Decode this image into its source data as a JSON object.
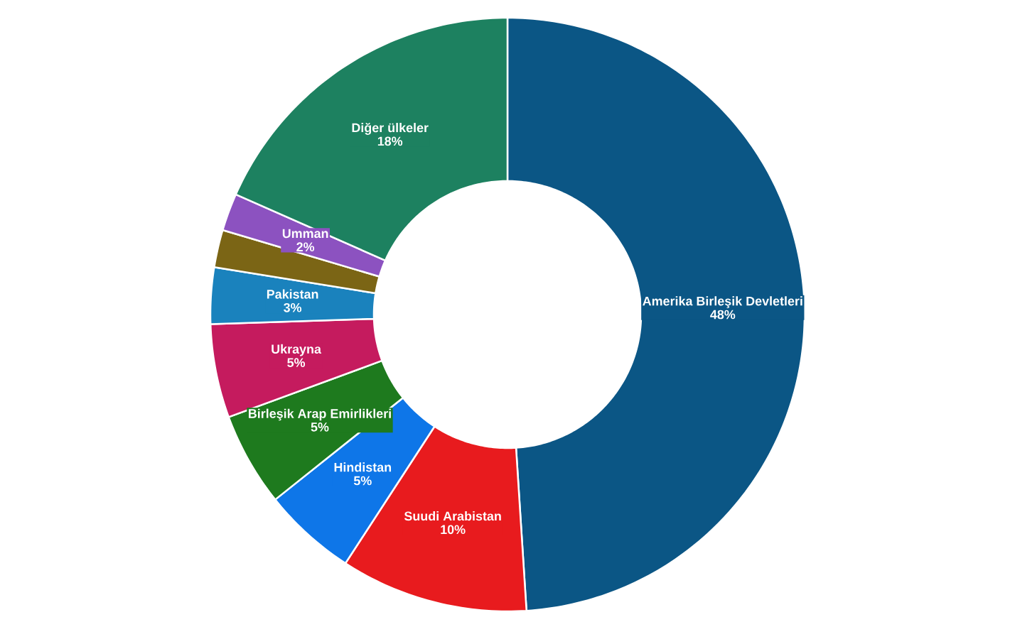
{
  "chart_data": {
    "type": "donut",
    "categories": [
      "Amerika Birleşik Devletleri",
      "Suudi Arabistan",
      "Hindistan",
      "Birleşik Arap Emirlikleri",
      "Ukrayna",
      "Pakistan",
      null,
      "Umman",
      "Diğer ülkeler"
    ],
    "values": [
      48,
      10,
      5,
      5,
      5,
      3,
      2,
      2,
      18
    ],
    "value_labels": [
      "48%",
      "10%",
      "5%",
      "5%",
      "5%",
      "3%",
      null,
      "2%",
      "18%"
    ],
    "colors": [
      "#0b5685",
      "#e81b1e",
      "#0e76e8",
      "#1e7a1e",
      "#c51b5e",
      "#1a82bd",
      "#7b6515",
      "#8c52c0",
      "#1d8160"
    ]
  }
}
